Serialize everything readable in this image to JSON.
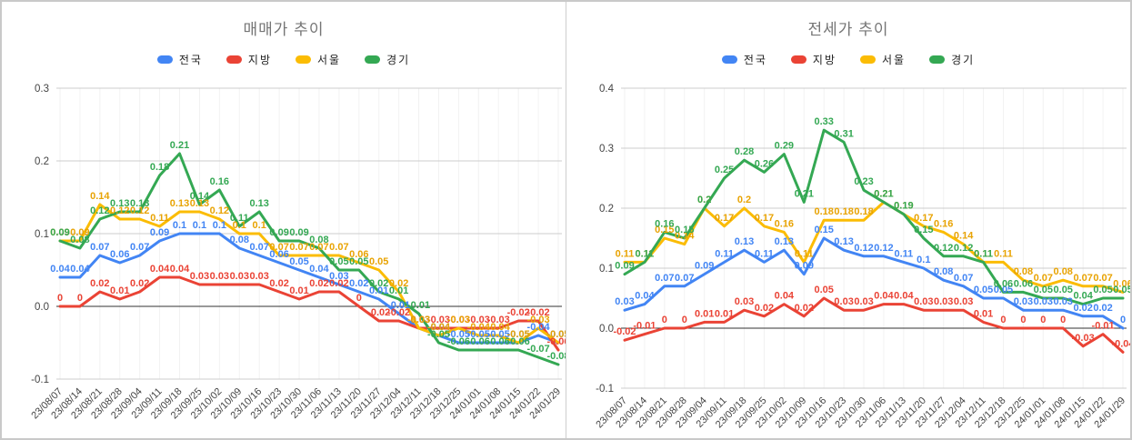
{
  "chart_data": [
    {
      "type": "line",
      "title": "매매가 추이",
      "legend_position": "top",
      "grid": true,
      "ylim": [
        -0.1,
        0.3
      ],
      "y_ticks": [
        "0.3",
        "0.2",
        "0.1",
        "0.0",
        "-0.1"
      ],
      "categories": [
        "23/08/07",
        "23/08/14",
        "23/08/21",
        "23/08/28",
        "23/09/04",
        "23/09/11",
        "23/09/18",
        "23/09/25",
        "23/10/02",
        "23/10/09",
        "23/10/16",
        "23/10/23",
        "23/10/30",
        "23/11/06",
        "23/11/13",
        "23/11/20",
        "23/11/27",
        "23/12/04",
        "23/12/11",
        "23/12/18",
        "23/12/25",
        "24/01/01",
        "24/01/08",
        "24/01/15",
        "24/01/22",
        "24/01/29"
      ],
      "series": [
        {
          "name": "전국",
          "color": "#4285f4",
          "label_color": "#4285f4",
          "values": [
            0.04,
            0.04,
            0.07,
            0.06,
            0.07,
            0.09,
            0.1,
            0.1,
            0.1,
            0.08,
            0.07,
            0.06,
            0.05,
            0.04,
            0.03,
            0.02,
            0.01,
            -0.01,
            -0.03,
            -0.04,
            -0.05,
            -0.05,
            -0.05,
            -0.05,
            -0.04,
            -0.05
          ]
        },
        {
          "name": "지방",
          "color": "#ea4335",
          "label_color": "#ea4335",
          "values": [
            0,
            0,
            0.02,
            0.01,
            0.02,
            0.04,
            0.04,
            0.03,
            0.03,
            0.03,
            0.03,
            0.02,
            0.01,
            0.02,
            0.02,
            0,
            -0.02,
            -0.02,
            -0.03,
            -0.03,
            -0.03,
            -0.03,
            -0.03,
            -0.02,
            -0.02,
            -0.06
          ]
        },
        {
          "name": "서울",
          "color": "#fbbc04",
          "label_color": "#e8a303",
          "values": [
            0.09,
            0.09,
            0.14,
            0.12,
            0.12,
            0.11,
            0.13,
            0.13,
            0.12,
            0.1,
            0.1,
            0.07,
            0.07,
            0.07,
            0.07,
            0.06,
            0.05,
            0.02,
            -0.03,
            -0.04,
            -0.03,
            -0.04,
            -0.04,
            -0.05,
            -0.03,
            -0.05
          ]
        },
        {
          "name": "경기",
          "color": "#34a853",
          "label_color": "#34a853",
          "values": [
            0.09,
            0.08,
            0.12,
            0.13,
            0.13,
            0.18,
            0.21,
            0.14,
            0.16,
            0.11,
            0.13,
            0.09,
            0.09,
            0.08,
            0.05,
            0.05,
            0.02,
            0.01,
            -0.01,
            -0.05,
            -0.06,
            -0.06,
            -0.06,
            -0.06,
            -0.07,
            -0.08
          ]
        }
      ]
    },
    {
      "type": "line",
      "title": "전세가 추이",
      "legend_position": "top",
      "grid": true,
      "ylim": [
        -0.1,
        0.4
      ],
      "y_ticks": [
        "0.4",
        "0.3",
        "0.2",
        "0.1",
        "0.0",
        "-0.1"
      ],
      "categories": [
        "23/08/07",
        "23/08/14",
        "23/08/21",
        "23/08/28",
        "23/09/04",
        "23/09/11",
        "23/09/18",
        "23/09/25",
        "23/10/02",
        "23/10/09",
        "23/10/16",
        "23/10/23",
        "23/10/30",
        "23/11/06",
        "23/11/13",
        "23/11/20",
        "23/11/27",
        "23/12/04",
        "23/12/11",
        "23/12/18",
        "23/12/25",
        "24/01/01",
        "24/01/08",
        "24/01/15",
        "24/01/22",
        "24/01/29"
      ],
      "series": [
        {
          "name": "전국",
          "color": "#4285f4",
          "label_color": "#4285f4",
          "values": [
            0.03,
            0.04,
            0.07,
            0.07,
            0.09,
            0.11,
            0.13,
            0.11,
            0.13,
            0.09,
            0.15,
            0.13,
            0.12,
            0.12,
            0.11,
            0.1,
            0.08,
            0.07,
            0.05,
            0.05,
            0.03,
            0.03,
            0.03,
            0.02,
            0.02,
            0
          ]
        },
        {
          "name": "지방",
          "color": "#ea4335",
          "label_color": "#ea4335",
          "values": [
            -0.02,
            -0.01,
            0,
            0,
            0.01,
            0.01,
            0.03,
            0.02,
            0.04,
            0.02,
            0.05,
            0.03,
            0.03,
            0.04,
            0.04,
            0.03,
            0.03,
            0.03,
            0.01,
            0,
            0,
            0,
            0,
            -0.03,
            -0.01,
            -0.04
          ]
        },
        {
          "name": "서울",
          "color": "#fbbc04",
          "label_color": "#e8a303",
          "values": [
            0.11,
            0.11,
            0.15,
            0.14,
            0.2,
            0.17,
            0.2,
            0.17,
            0.16,
            0.11,
            0.18,
            0.18,
            0.18,
            0.21,
            0.19,
            0.17,
            0.16,
            0.14,
            0.11,
            0.11,
            0.08,
            0.07,
            0.08,
            0.07,
            0.07,
            0.06
          ]
        },
        {
          "name": "경기",
          "color": "#34a853",
          "label_color": "#34a853",
          "values": [
            0.09,
            0.11,
            0.16,
            0.15,
            0.2,
            0.25,
            0.28,
            0.26,
            0.29,
            0.21,
            0.33,
            0.31,
            0.23,
            0.21,
            0.19,
            0.15,
            0.12,
            0.12,
            0.11,
            0.06,
            0.06,
            0.05,
            0.05,
            0.04,
            0.05,
            0.05
          ]
        }
      ]
    }
  ],
  "style": {
    "grid_color": "#cccccc",
    "vgrid_color": "#f2f2f2",
    "zero_line_color": "#333333",
    "axis_text_color": "#444444",
    "title_color": "#757575"
  }
}
